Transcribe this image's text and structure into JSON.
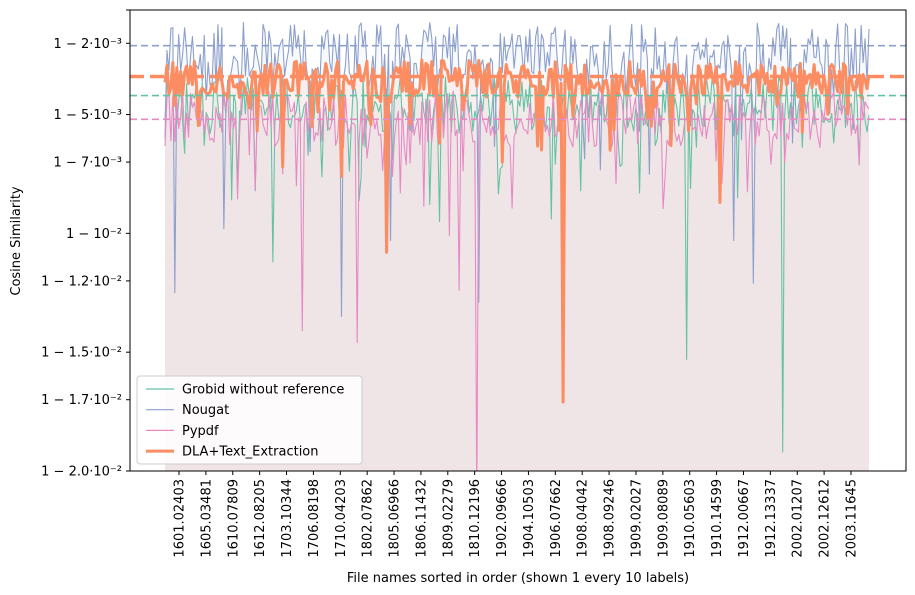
{
  "chart_data": {
    "type": "line",
    "title": "",
    "xlabel": "File names sorted in order (shown 1 every 10 labels)",
    "ylabel": "Cosine Similarity",
    "ylim": [
      0.98,
      0.9994
    ],
    "yticks": [
      {
        "value": 0.998,
        "label": "1 − 2·10⁻³"
      },
      {
        "value": 0.995,
        "label": "1 − 5·10⁻³"
      },
      {
        "value": 0.993,
        "label": "1 − 7·10⁻³"
      },
      {
        "value": 0.99,
        "label": "1 − 10⁻²"
      },
      {
        "value": 0.988,
        "label": "1 − 1.2·10⁻²"
      },
      {
        "value": 0.985,
        "label": "1 − 1.5·10⁻²"
      },
      {
        "value": 0.983,
        "label": "1 − 1.7·10⁻²"
      },
      {
        "value": 0.98,
        "label": "1 − 2.0·10⁻²"
      }
    ],
    "n_points": 360,
    "xticks": [
      "1601.02403",
      "1605.03481",
      "1610.07809",
      "1612.08205",
      "1703.10344",
      "1706.08198",
      "1710.04203",
      "1802.07862",
      "1805.06966",
      "1806.11432",
      "1809.02279",
      "1810.12196",
      "1902.09666",
      "1904.10503",
      "1906.07662",
      "1908.04042",
      "1908.09246",
      "1909.02027",
      "1909.08089",
      "1910.05603",
      "1910.14599",
      "1912.00667",
      "1912.13337",
      "2002.01207",
      "2002.12612",
      "2003.11645"
    ],
    "legend_position": "lower-left",
    "grid": false,
    "series": [
      {
        "name": "Grobid without reference",
        "color": "#66c2a5",
        "mean": 0.9954,
        "spread": 0.0012,
        "drops": [
          [
            55,
            0.9888
          ],
          [
            140,
            0.9905
          ],
          [
            197,
            0.9906
          ],
          [
            250,
            0.9937
          ],
          [
            266,
            0.9847
          ],
          [
            290,
            0.9941
          ],
          [
            315,
            0.9808
          ],
          [
            341,
            0.9938
          ]
        ]
      },
      {
        "name": "Nougat",
        "color": "#8da0cb",
        "mean": 0.9975,
        "spread": 0.0014,
        "drops": [
          [
            5,
            0.9875
          ],
          [
            30,
            0.9902
          ],
          [
            90,
            0.9865
          ],
          [
            115,
            0.9897
          ],
          [
            160,
            0.9871
          ],
          [
            213,
            0.9947
          ],
          [
            290,
            0.9897
          ],
          [
            300,
            0.9879
          ],
          [
            320,
            0.9938
          ]
        ]
      },
      {
        "name": "Pypdf",
        "color": "#e78ac3",
        "mean": 0.9948,
        "spread": 0.0012,
        "drops": [
          [
            43,
            0.9933
          ],
          [
            60,
            0.9925
          ],
          [
            70,
            0.9859
          ],
          [
            98,
            0.9854
          ],
          [
            120,
            0.9917
          ],
          [
            145,
            0.9899
          ],
          [
            150,
            0.9876
          ],
          [
            159,
            0.9788
          ],
          [
            175,
            0.9938
          ],
          [
            230,
            0.9921
          ]
        ]
      },
      {
        "name": "DLA+Text_Extraction",
        "color": "#fc8d62",
        "mean": 0.9965,
        "spread": 0.0008,
        "drops": [
          [
            60,
            0.9928
          ],
          [
            75,
            0.9945
          ],
          [
            90,
            0.9924
          ],
          [
            113,
            0.9892
          ],
          [
            140,
            0.9938
          ],
          [
            172,
            0.993
          ],
          [
            203,
            0.9829
          ],
          [
            227,
            0.9935
          ],
          [
            283,
            0.9913
          ]
        ]
      }
    ],
    "reference_lines": [
      {
        "series": "Nougat",
        "value": 0.9979,
        "color": "#8da0cb"
      },
      {
        "series": "DLA+Text_Extraction",
        "value": 0.9966,
        "color": "#fc8d62"
      },
      {
        "series": "Grobid without reference",
        "value": 0.9958,
        "color": "#66c2a5"
      },
      {
        "series": "Pypdf",
        "value": 0.9948,
        "color": "#e78ac3"
      }
    ]
  }
}
